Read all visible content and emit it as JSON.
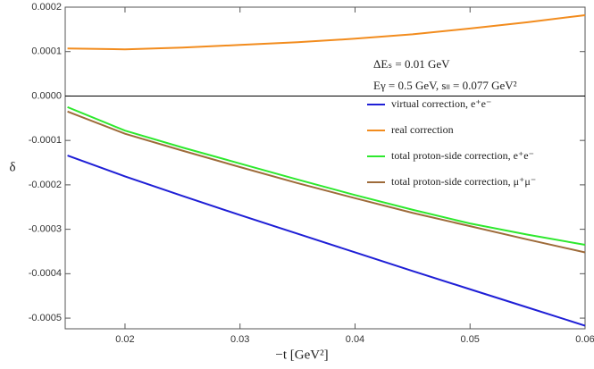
{
  "chart_data": {
    "type": "line",
    "xlabel": "−t [GeV²]",
    "ylabel": "δ",
    "annotations": [
      "ΔEₛ = 0.01 GeV",
      "Eγ = 0.5 GeV, sₗₗ = 0.077 GeV²"
    ],
    "x": [
      0.015,
      0.02,
      0.025,
      0.03,
      0.035,
      0.04,
      0.045,
      0.05,
      0.055,
      0.06
    ],
    "series": [
      {
        "name": "virtual correction, e⁺e⁻",
        "color": "#1f1fd6",
        "values": [
          -0.000134,
          -0.000181,
          -0.000225,
          -0.000268,
          -0.00031,
          -0.000352,
          -0.000394,
          -0.000435,
          -0.000476,
          -0.000517
        ]
      },
      {
        "name": "real correction",
        "color": "#f28c1e",
        "values": [
          0.000107,
          0.000105,
          0.000109,
          0.000115,
          0.000121,
          0.000129,
          0.000139,
          0.000152,
          0.000166,
          0.000182
        ]
      },
      {
        "name": "total proton-side correction, e⁺e⁻",
        "color": "#2ee82e",
        "values": [
          -2.5e-05,
          -7.8e-05,
          -0.000116,
          -0.000152,
          -0.000188,
          -0.000223,
          -0.000256,
          -0.000287,
          -0.000312,
          -0.000335
        ]
      },
      {
        "name": "total proton-side correction, μ⁺μ⁻",
        "color": "#9e6b3a",
        "values": [
          -3.5e-05,
          -8.5e-05,
          -0.000123,
          -0.00016,
          -0.000196,
          -0.00023,
          -0.000263,
          -0.000293,
          -0.000323,
          -0.000352
        ]
      }
    ],
    "xlim": [
      0.0148,
      0.06
    ],
    "ylim": [
      -0.000524,
      0.0002
    ],
    "xticks": [
      0.02,
      0.03,
      0.04,
      0.05,
      0.06
    ],
    "yticks": [
      0.0002,
      0.0001,
      {
        "value": 0,
        "label": "0.0000"
      },
      -0.0001,
      -0.0002,
      -0.0003,
      -0.0004,
      -0.0005
    ],
    "grid": false,
    "legend": "right"
  }
}
